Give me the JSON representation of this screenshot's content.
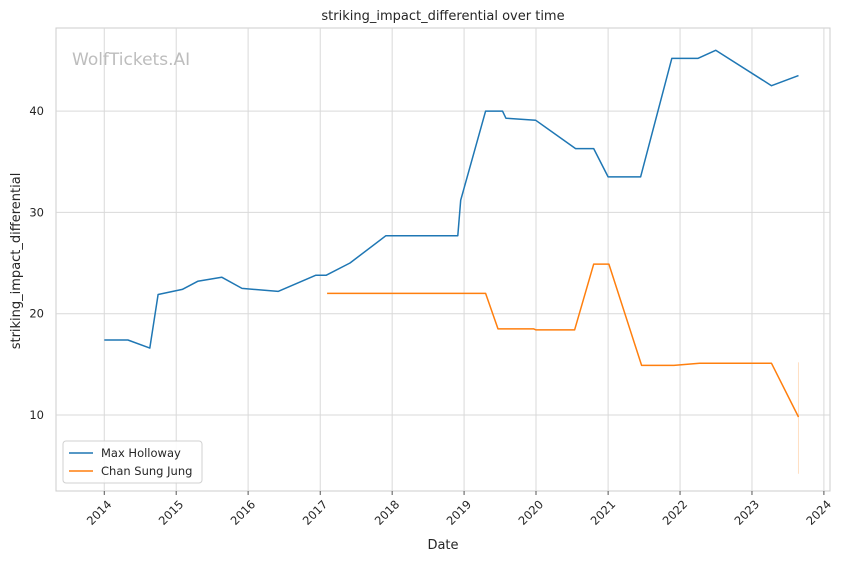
{
  "watermark": "WolfTickets.AI",
  "chart_data": {
    "type": "line",
    "title": "striking_impact_differential over time",
    "xlabel": "Date",
    "ylabel": "striking_impact_differential",
    "grid": true,
    "legend_position": "lower-left",
    "xlim": [
      "2013-05-01",
      "2024-02-01"
    ],
    "ylim": [
      2.5,
      48.2
    ],
    "x_ticks": [
      "2014",
      "2015",
      "2016",
      "2017",
      "2018",
      "2019",
      "2020",
      "2021",
      "2022",
      "2023",
      "2024"
    ],
    "y_ticks": [
      10,
      20,
      30,
      40
    ],
    "series": [
      {
        "name": "Max Holloway",
        "color": "#1f77b4",
        "points": [
          [
            "2014-01-01",
            17.4
          ],
          [
            "2014-05-01",
            17.4
          ],
          [
            "2014-08-20",
            16.6
          ],
          [
            "2014-10-01",
            21.9
          ],
          [
            "2015-02-01",
            22.4
          ],
          [
            "2015-04-20",
            23.2
          ],
          [
            "2015-08-20",
            23.6
          ],
          [
            "2015-12-01",
            22.5
          ],
          [
            "2016-06-01",
            22.2
          ],
          [
            "2016-12-10",
            23.8
          ],
          [
            "2017-02-01",
            23.8
          ],
          [
            "2017-06-01",
            25.0
          ],
          [
            "2017-11-30",
            27.7
          ],
          [
            "2018-11-30",
            27.7
          ],
          [
            "2018-12-15",
            31.2
          ],
          [
            "2019-04-20",
            40.0
          ],
          [
            "2019-07-15",
            40.0
          ],
          [
            "2019-08-01",
            39.3
          ],
          [
            "2019-12-30",
            39.1
          ],
          [
            "2020-07-20",
            36.3
          ],
          [
            "2020-10-20",
            36.3
          ],
          [
            "2021-01-01",
            33.5
          ],
          [
            "2021-06-15",
            33.5
          ],
          [
            "2021-11-20",
            45.2
          ],
          [
            "2022-04-01",
            45.2
          ],
          [
            "2022-07-01",
            46.0
          ],
          [
            "2023-04-10",
            42.5
          ],
          [
            "2023-08-25",
            43.5
          ]
        ]
      },
      {
        "name": "Chan Sung Jung",
        "color": "#ff7f0e",
        "points": [
          [
            "2017-02-05",
            22.0
          ],
          [
            "2019-04-20",
            22.0
          ],
          [
            "2019-06-22",
            18.5
          ],
          [
            "2019-12-21",
            18.5
          ],
          [
            "2020-01-01",
            18.4
          ],
          [
            "2020-07-15",
            18.4
          ],
          [
            "2020-10-20",
            24.9
          ],
          [
            "2021-01-05",
            24.9
          ],
          [
            "2021-06-20",
            14.9
          ],
          [
            "2021-12-01",
            14.9
          ],
          [
            "2022-04-10",
            15.1
          ],
          [
            "2023-04-10",
            15.1
          ],
          [
            "2023-08-25",
            9.8
          ]
        ],
        "error_band": {
          "x": "2023-08-25",
          "low": 4.2,
          "high": 15.2
        }
      }
    ]
  }
}
